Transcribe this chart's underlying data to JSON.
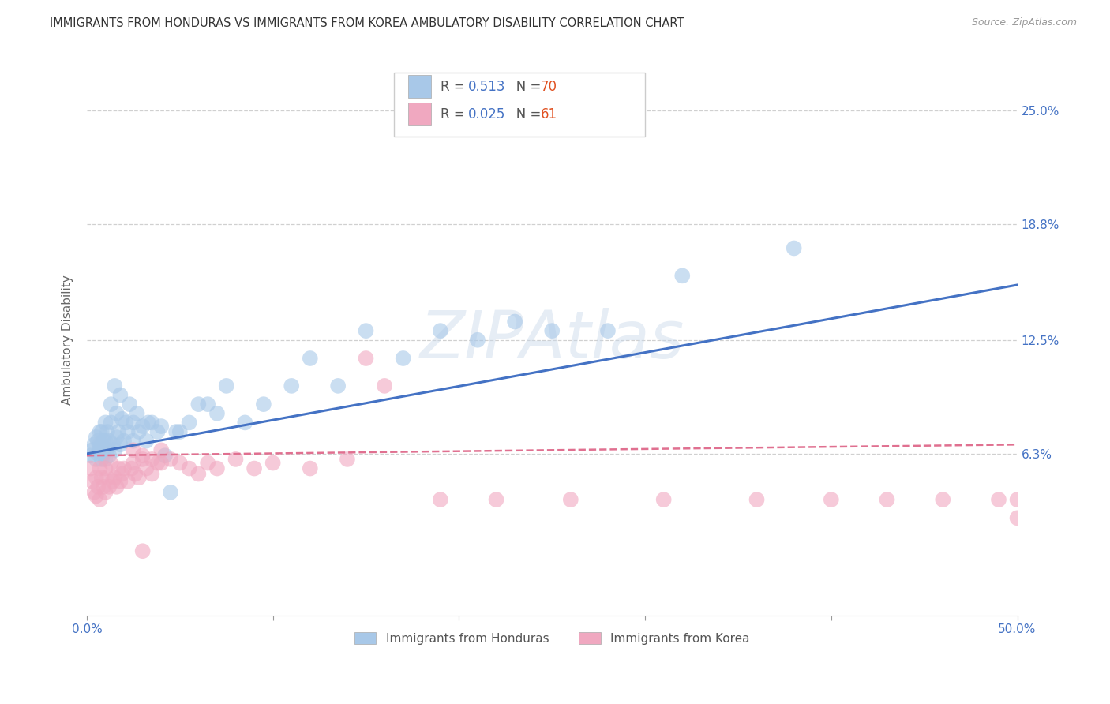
{
  "title": "IMMIGRANTS FROM HONDURAS VS IMMIGRANTS FROM KOREA AMBULATORY DISABILITY CORRELATION CHART",
  "source": "Source: ZipAtlas.com",
  "ylabel": "Ambulatory Disability",
  "ytick_vals": [
    0.063,
    0.125,
    0.188,
    0.25
  ],
  "ytick_labels": [
    "6.3%",
    "12.5%",
    "18.8%",
    "25.0%"
  ],
  "xlim": [
    0.0,
    0.5
  ],
  "ylim": [
    -0.025,
    0.275
  ],
  "legend1_r": "0.513",
  "legend1_n": "70",
  "legend2_r": "0.025",
  "legend2_n": "61",
  "color_honduras": "#a8c8e8",
  "color_korea": "#f0a8c0",
  "color_line_honduras": "#4472c4",
  "color_line_korea": "#e07090",
  "label_honduras": "Immigrants from Honduras",
  "label_korea": "Immigrants from Korea",
  "watermark": "ZIPAtlas",
  "honduras_x": [
    0.002,
    0.003,
    0.004,
    0.005,
    0.005,
    0.006,
    0.006,
    0.007,
    0.007,
    0.007,
    0.008,
    0.008,
    0.008,
    0.009,
    0.009,
    0.01,
    0.01,
    0.01,
    0.011,
    0.011,
    0.012,
    0.012,
    0.013,
    0.013,
    0.014,
    0.015,
    0.015,
    0.016,
    0.016,
    0.017,
    0.018,
    0.018,
    0.019,
    0.02,
    0.021,
    0.022,
    0.023,
    0.025,
    0.025,
    0.027,
    0.028,
    0.03,
    0.032,
    0.033,
    0.035,
    0.038,
    0.04,
    0.042,
    0.045,
    0.048,
    0.05,
    0.055,
    0.06,
    0.065,
    0.07,
    0.075,
    0.085,
    0.095,
    0.11,
    0.12,
    0.135,
    0.15,
    0.17,
    0.19,
    0.21,
    0.23,
    0.25,
    0.28,
    0.32,
    0.38
  ],
  "honduras_y": [
    0.062,
    0.065,
    0.068,
    0.06,
    0.072,
    0.063,
    0.07,
    0.065,
    0.068,
    0.075,
    0.06,
    0.068,
    0.075,
    0.063,
    0.07,
    0.06,
    0.07,
    0.08,
    0.065,
    0.075,
    0.062,
    0.07,
    0.08,
    0.09,
    0.068,
    0.065,
    0.1,
    0.072,
    0.085,
    0.075,
    0.068,
    0.095,
    0.082,
    0.07,
    0.08,
    0.075,
    0.09,
    0.07,
    0.08,
    0.085,
    0.075,
    0.078,
    0.07,
    0.08,
    0.08,
    0.075,
    0.078,
    0.062,
    0.042,
    0.075,
    0.075,
    0.08,
    0.09,
    0.09,
    0.085,
    0.1,
    0.08,
    0.09,
    0.1,
    0.115,
    0.1,
    0.13,
    0.115,
    0.13,
    0.125,
    0.135,
    0.13,
    0.13,
    0.16,
    0.175
  ],
  "korea_x": [
    0.002,
    0.003,
    0.004,
    0.005,
    0.005,
    0.006,
    0.007,
    0.007,
    0.008,
    0.009,
    0.01,
    0.01,
    0.011,
    0.012,
    0.013,
    0.014,
    0.015,
    0.016,
    0.017,
    0.018,
    0.019,
    0.02,
    0.022,
    0.024,
    0.026,
    0.028,
    0.03,
    0.032,
    0.035,
    0.038,
    0.04,
    0.045,
    0.05,
    0.055,
    0.06,
    0.065,
    0.07,
    0.08,
    0.09,
    0.1,
    0.12,
    0.14,
    0.16,
    0.19,
    0.22,
    0.26,
    0.31,
    0.36,
    0.4,
    0.43,
    0.46,
    0.49,
    0.5,
    0.5,
    0.025,
    0.025,
    0.03,
    0.035,
    0.04,
    0.15,
    0.03
  ],
  "korea_y": [
    0.055,
    0.048,
    0.042,
    0.05,
    0.04,
    0.045,
    0.055,
    0.038,
    0.05,
    0.045,
    0.055,
    0.042,
    0.05,
    0.045,
    0.058,
    0.048,
    0.05,
    0.045,
    0.055,
    0.048,
    0.052,
    0.055,
    0.048,
    0.055,
    0.052,
    0.05,
    0.06,
    0.055,
    0.052,
    0.058,
    0.058,
    0.06,
    0.058,
    0.055,
    0.052,
    0.058,
    0.055,
    0.06,
    0.055,
    0.058,
    0.055,
    0.06,
    0.1,
    0.038,
    0.038,
    0.038,
    0.038,
    0.038,
    0.038,
    0.038,
    0.038,
    0.038,
    0.038,
    0.028,
    0.065,
    0.058,
    0.062,
    0.06,
    0.065,
    0.115,
    0.01
  ]
}
